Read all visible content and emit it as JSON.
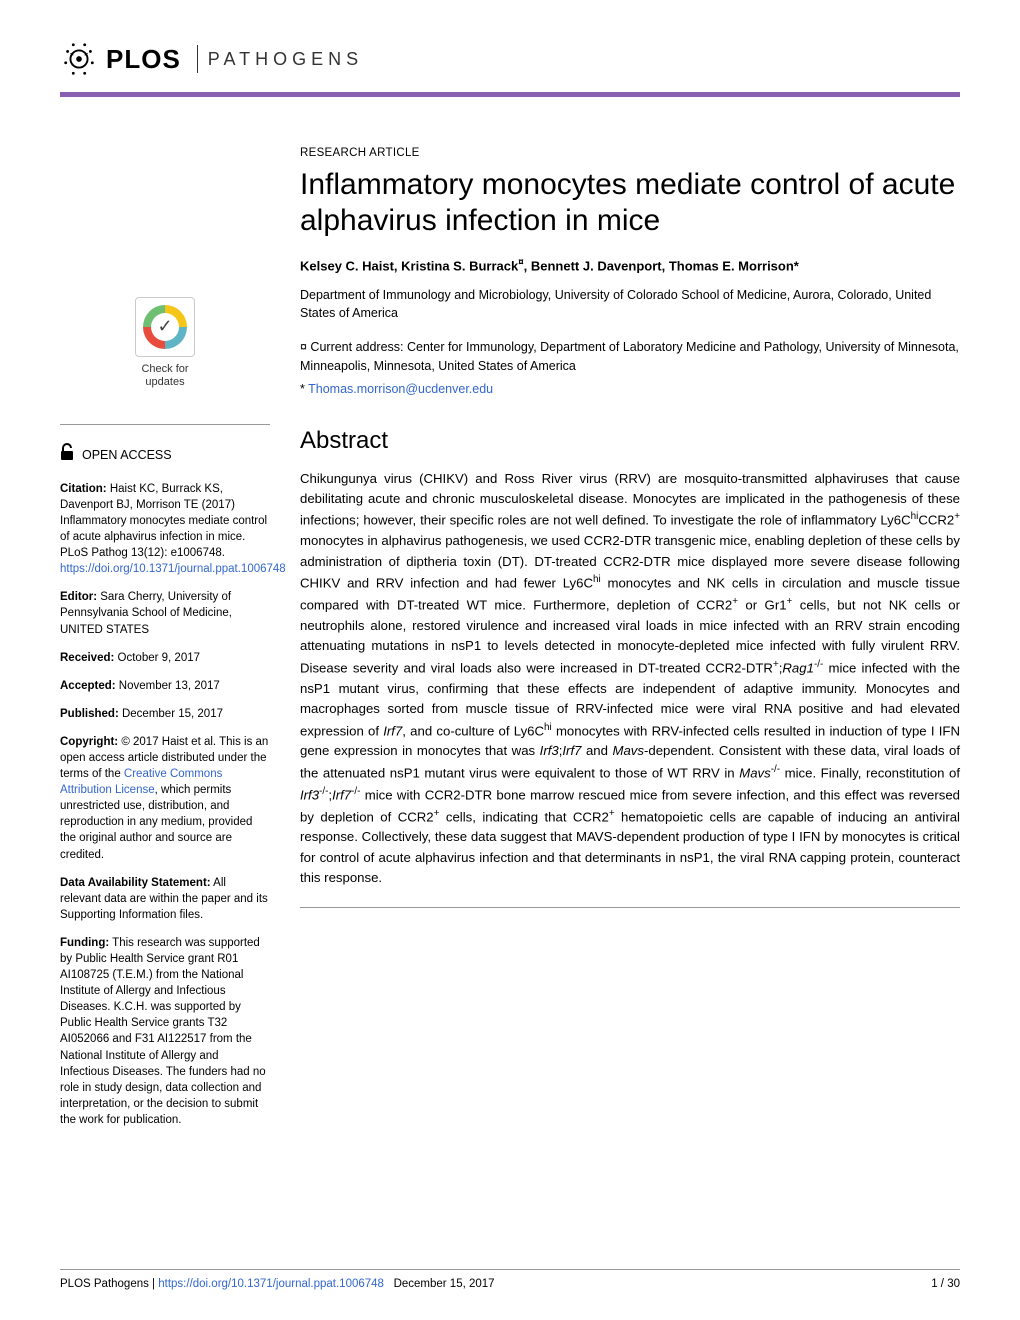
{
  "header": {
    "logo_text": "PLOS",
    "journal": "PATHOGENS",
    "rule_color": "#8a5fb0"
  },
  "article": {
    "type": "RESEARCH ARTICLE",
    "title": "Inflammatory monocytes mediate control of acute alphavirus infection in mice",
    "authors_html": "Kelsey C. Haist, Kristina S. Burrack<sup>¤</sup>, Bennett J. Davenport, Thomas E. Morrison*",
    "affiliation": "Department of Immunology and Microbiology, University of Colorado School of Medicine, Aurora, Colorado, United States of America",
    "note_current": "¤ Current address: Center for Immunology, Department of Laboratory Medicine and Pathology, University of Minnesota, Minneapolis, Minnesota, United States of America",
    "note_corresponding_prefix": "* ",
    "corresponding_email": "Thomas.morrison@ucdenver.edu",
    "abstract_heading": "Abstract",
    "abstract_html": "Chikungunya virus (CHIKV) and Ross River virus (RRV) are mosquito-transmitted alphaviruses that cause debilitating acute and chronic musculoskeletal disease. Monocytes are implicated in the pathogenesis of these infections; however, their specific roles are not well defined. To investigate the role of inflammatory Ly6C<sup>hi</sup>CCR2<sup>+</sup> monocytes in alphavirus pathogenesis, we used CCR2-DTR transgenic mice, enabling depletion of these cells by administration of diptheria toxin (DT). DT-treated CCR2-DTR mice displayed more severe disease following CHIKV and RRV infection and had fewer Ly6C<sup>hi</sup> monocytes and NK cells in circulation and muscle tissue compared with DT-treated WT mice. Furthermore, depletion of CCR2<sup>+</sup> or Gr1<sup>+</sup> cells, but not NK cells or neutrophils alone, restored virulence and increased viral loads in mice infected with an RRV strain encoding attenuating mutations in nsP1 to levels detected in monocyte-depleted mice infected with fully virulent RRV. Disease severity and viral loads also were increased in DT-treated CCR2-DTR<sup>+</sup>;<span class=\"ital\">Rag1</span><sup>-/-</sup> mice infected with the nsP1 mutant virus, confirming that these effects are independent of adaptive immunity. Monocytes and macrophages sorted from muscle tissue of RRV-infected mice were viral RNA positive and had elevated expression of <span class=\"ital\">Irf7</span>, and co-culture of Ly6C<sup>hi</sup> monocytes with RRV-infected cells resulted in induction of type I IFN gene expression in monocytes that was <span class=\"ital\">Irf3</span>;<span class=\"ital\">Irf7</span> and <span class=\"ital\">Mavs</span>-dependent. Consistent with these data, viral loads of the attenuated nsP1 mutant virus were equivalent to those of WT RRV in <span class=\"ital\">Mavs</span><sup>-/-</sup> mice. Finally, reconstitution of <span class=\"ital\">Irf3</span><sup>-/-</sup>;<span class=\"ital\">Irf7</span><sup>-/-</sup> mice with CCR2-DTR bone marrow rescued mice from severe infection, and this effect was reversed by depletion of CCR2<sup>+</sup> cells, indicating that CCR2<sup>+</sup> hematopoietic cells are capable of inducing an antiviral response. Collectively, these data suggest that MAVS-dependent production of type I IFN by monocytes is critical for control of acute alphavirus infection and that determinants in nsP1, the viral RNA capping protein, counteract this response."
  },
  "sidebar": {
    "check_updates_line1": "Check for",
    "check_updates_line2": "updates",
    "open_access": "OPEN ACCESS",
    "citation_label": "Citation:",
    "citation_text": " Haist KC, Burrack KS, Davenport BJ, Morrison TE (2017) Inflammatory monocytes mediate control of acute alphavirus infection in mice. PLoS Pathog 13(12): e1006748. ",
    "citation_link": "https://doi.org/10.1371/journal.ppat.1006748",
    "editor_label": "Editor:",
    "editor_text": " Sara Cherry, University of Pennsylvania School of Medicine, UNITED STATES",
    "received_label": "Received:",
    "received_text": " October 9, 2017",
    "accepted_label": "Accepted:",
    "accepted_text": " November 13, 2017",
    "published_label": "Published:",
    "published_text": " December 15, 2017",
    "copyright_label": "Copyright:",
    "copyright_text_pre": " © 2017 Haist et al. This is an open access article distributed under the terms of the ",
    "copyright_link": "Creative Commons Attribution License",
    "copyright_text_post": ", which permits unrestricted use, distribution, and reproduction in any medium, provided the original author and source are credited.",
    "data_label": "Data Availability Statement:",
    "data_text": " All relevant data are within the paper and its Supporting Information files.",
    "funding_label": "Funding:",
    "funding_text": " This research was supported by Public Health Service grant R01 AI108725 (T.E.M.) from the National Institute of Allergy and Infectious Diseases. K.C.H. was supported by Public Health Service grants T32 AI052066 and F31 AI122517 from the National Institute of Allergy and Infectious Diseases. The funders had no role in study design, data collection and interpretation, or the decision to submit the work for publication."
  },
  "footer": {
    "journal": "PLOS Pathogens | ",
    "doi": "https://doi.org/10.1371/journal.ppat.1006748",
    "date": "December 15, 2017",
    "pages": "1 / 30"
  },
  "colors": {
    "link": "#3366cc",
    "text": "#000000",
    "rule": "#999999"
  }
}
